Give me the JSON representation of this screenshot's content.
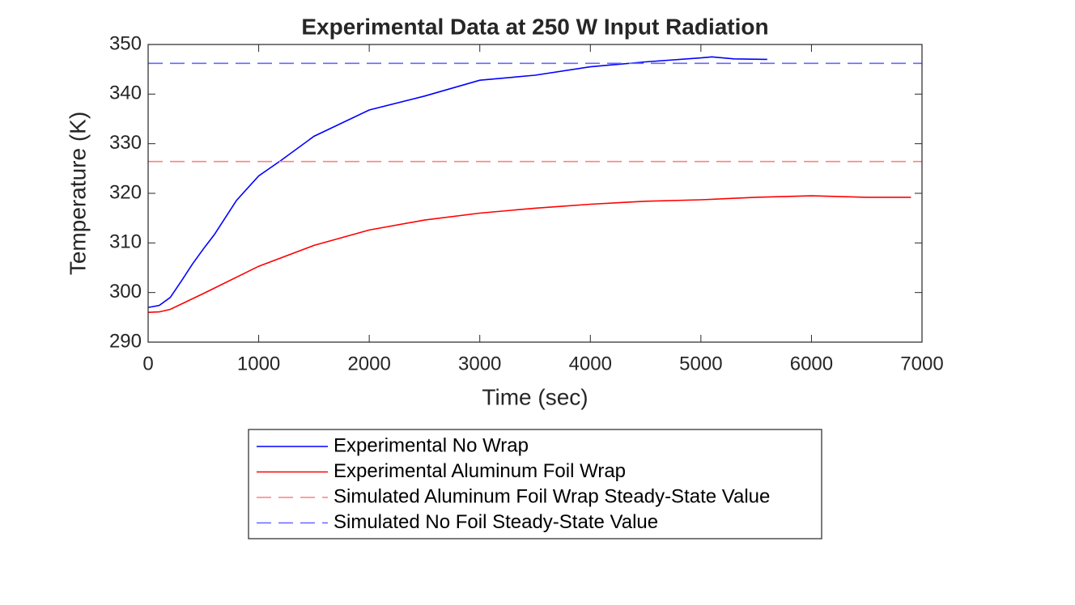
{
  "chart_data": {
    "type": "line",
    "title": "Experimental Data at 250 W Input Radiation",
    "x_label": "Time (sec)",
    "y_label": "Temperature (K)",
    "xlim": [
      0,
      7000
    ],
    "xticks": [
      0,
      1000,
      2000,
      3000,
      4000,
      5000,
      6000,
      7000
    ],
    "ylim": [
      290,
      350
    ],
    "yticks": [
      290,
      300,
      310,
      320,
      330,
      340,
      350
    ],
    "legend": "bottom-outside",
    "series": [
      {
        "name": "Experimental No Wrap",
        "color": "#0000ff",
        "dash": false,
        "x": [
          0,
          100,
          200,
          300,
          400,
          500,
          600,
          800,
          1000,
          1200,
          1500,
          2000,
          2500,
          3000,
          3500,
          4000,
          4500,
          5000,
          5100,
          5300,
          5600
        ],
        "values": [
          297,
          297.4,
          299,
          302.3,
          305.7,
          308.8,
          311.7,
          318.6,
          323.5,
          326.6,
          331.5,
          336.8,
          339.6,
          342.8,
          343.8,
          345.5,
          346.5,
          347.3,
          347.5,
          347.1,
          347
        ]
      },
      {
        "name": "Experimental Aluminum Foil Wrap",
        "color": "#ff0000",
        "dash": false,
        "x": [
          0,
          100,
          200,
          500,
          1000,
          1500,
          2000,
          2500,
          3000,
          3500,
          4000,
          4500,
          5000,
          5500,
          6000,
          6500,
          6900
        ],
        "values": [
          296,
          296.1,
          296.6,
          299.8,
          305.3,
          309.5,
          312.6,
          314.6,
          316,
          317,
          317.8,
          318.4,
          318.7,
          319.2,
          319.5,
          319.2,
          319.2
        ]
      },
      {
        "name": "Simulated Aluminum Foil Wrap Steady-State Value",
        "color": "#ff8080",
        "dash": true,
        "x": [
          0,
          7000
        ],
        "values": [
          326.4,
          326.4
        ]
      },
      {
        "name": "Simulated No Foil Steady-State Value",
        "color": "#6666ff",
        "dash": true,
        "x": [
          0,
          7000
        ],
        "values": [
          346.2,
          346.2
        ]
      }
    ]
  }
}
